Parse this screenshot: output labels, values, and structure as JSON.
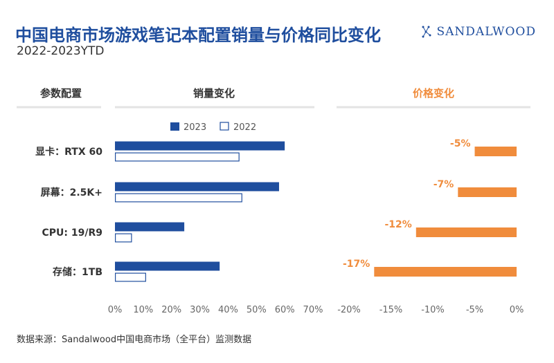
{
  "title": "中国电商市场游戏笔记本配置销量与价格同比变化",
  "subtitle": "2022-2023YTD",
  "brand": "SANDALWOOD",
  "source": "数据来源：Sandalwood中国电商市场（全平台）监测数据",
  "colors": {
    "series_2023": "#1f4e9e",
    "series_2022": "#ffffff",
    "price": "#f08c3c",
    "title": "#1f4e9e"
  },
  "chart_data": [
    {
      "type": "bar",
      "orientation": "horizontal",
      "column_header": "参数配置",
      "title": "销量变化",
      "categories": [
        "显卡：RTX 60",
        "屏幕：2.5K+",
        "CPU: 19/R9",
        "存储：1TB"
      ],
      "series": [
        {
          "name": "2023",
          "values": [
            0.6,
            0.58,
            0.245,
            0.37
          ]
        },
        {
          "name": "2022",
          "values": [
            0.44,
            0.45,
            0.06,
            0.11
          ]
        }
      ],
      "xlim": [
        0,
        0.7
      ],
      "x_ticks": [
        "0%",
        "10%",
        "20%",
        "30%",
        "40%",
        "50%",
        "60%",
        "70%"
      ],
      "legend_position": "top"
    },
    {
      "type": "bar",
      "orientation": "horizontal",
      "title": "价格变化",
      "categories": [
        "显卡：RTX 60",
        "屏幕：2.5K+",
        "CPU: 19/R9",
        "存储：1TB"
      ],
      "values": [
        -0.05,
        -0.07,
        -0.12,
        -0.17
      ],
      "data_labels": [
        "-5%",
        "-7%",
        "-12%",
        "-17%"
      ],
      "xlim": [
        -0.2,
        0
      ],
      "x_ticks": [
        "-20%",
        "-15%",
        "-10%",
        "-5%",
        "0%"
      ]
    }
  ]
}
